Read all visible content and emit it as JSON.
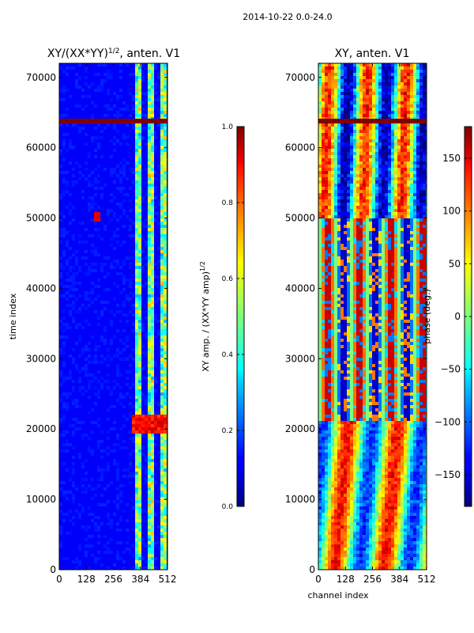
{
  "figure": {
    "suptitle": "2014-10-22 0.0-24.0"
  },
  "chart_data": [
    {
      "type": "heatmap",
      "title_main": "XY/(XX*YY)",
      "title_exp": "1/2",
      "title_tail": ", anten. V1",
      "xlabel": "",
      "ylabel": "time index",
      "xlim": [
        0,
        512
      ],
      "ylim": [
        0,
        72000
      ],
      "x_ticks": [
        0,
        128,
        256,
        384,
        512
      ],
      "y_ticks": [
        0,
        10000,
        20000,
        30000,
        40000,
        50000,
        60000,
        70000
      ],
      "colormap": "jet",
      "colorbar": {
        "label_main": "XY amp. / (XX*YY amp)",
        "label_exp": "1/2",
        "range": [
          0.0,
          1.0
        ],
        "ticks": [
          "0.0",
          "0.2",
          "0.4",
          "0.6",
          "0.8",
          "1.0"
        ]
      }
    },
    {
      "type": "heatmap",
      "title_main": "XY, anten. V1",
      "xlabel": "channel index",
      "ylabel": "",
      "xlim": [
        0,
        512
      ],
      "ylim": [
        0,
        72000
      ],
      "x_ticks": [
        0,
        128,
        256,
        384,
        512
      ],
      "y_ticks": [
        0,
        10000,
        20000,
        30000,
        40000,
        50000,
        60000,
        70000
      ],
      "colormap": "jet",
      "colorbar": {
        "label_main": "phase (deg.)",
        "range": [
          -180,
          180
        ],
        "ticks": [
          "150",
          "100",
          "50",
          "0",
          "−50",
          "−100",
          "−150"
        ],
        "tick_values": [
          150,
          100,
          50,
          0,
          -50,
          -100,
          -150
        ]
      }
    }
  ]
}
